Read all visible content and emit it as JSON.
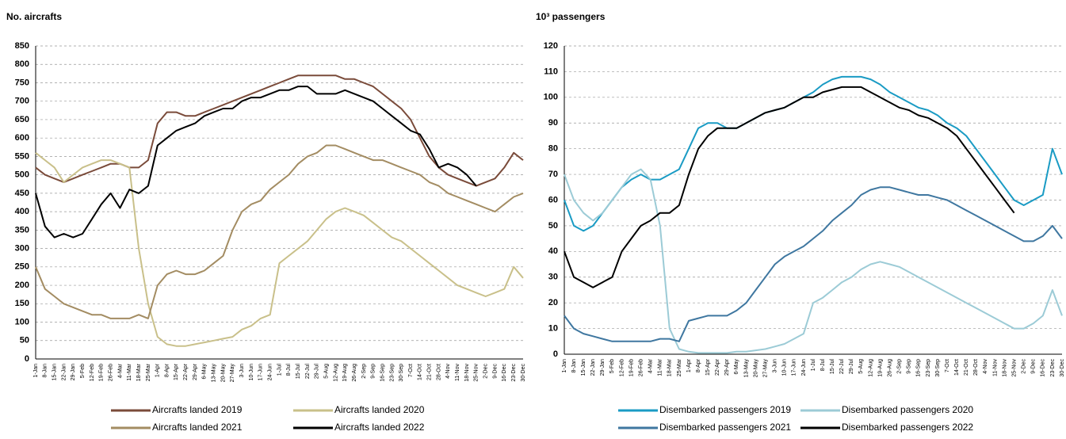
{
  "chart_data": [
    {
      "type": "line",
      "ylabel": "No. aircrafts",
      "categories": [
        "1-Jan",
        "8-Jan",
        "15-Jan",
        "22-Jan",
        "29-Jan",
        "5-Feb",
        "12-Feb",
        "19-Feb",
        "26-Feb",
        "4-Mar",
        "11-Mar",
        "18-Mar",
        "25-Mar",
        "1-Apr",
        "8-Apr",
        "15-Apr",
        "22-Apr",
        "29-Apr",
        "6-May",
        "13-May",
        "20-May",
        "27-May",
        "3-Jun",
        "10-Jun",
        "17-Jun",
        "24-Jun",
        "1-Jul",
        "8-Jul",
        "15-Jul",
        "22-Jul",
        "29-Jul",
        "5-Aug",
        "12-Aug",
        "19-Aug",
        "26-Aug",
        "2-Sep",
        "9-Sep",
        "16-Sep",
        "23-Sep",
        "30-Sep",
        "7-Oct",
        "14-Oct",
        "21-Oct",
        "28-Oct",
        "4-Nov",
        "11-Nov",
        "18-Nov",
        "25-Nov",
        "2-Dec",
        "9-Dec",
        "16-Dec",
        "23-Dec",
        "30-Dec"
      ],
      "ylim": [
        0,
        850
      ],
      "yticks": [
        0,
        50,
        100,
        150,
        200,
        250,
        300,
        350,
        400,
        450,
        500,
        550,
        600,
        650,
        700,
        750,
        800,
        850
      ],
      "grid": true,
      "series": [
        {
          "name": "Aircrafts landed 2019",
          "color": "#7a4b3a",
          "values": [
            520,
            500,
            490,
            480,
            490,
            500,
            510,
            520,
            530,
            530,
            520,
            520,
            540,
            640,
            670,
            670,
            660,
            660,
            670,
            680,
            690,
            700,
            710,
            720,
            730,
            740,
            750,
            760,
            770,
            770,
            770,
            770,
            770,
            760,
            760,
            750,
            740,
            720,
            700,
            680,
            650,
            600,
            550,
            520,
            500,
            490,
            480,
            470,
            480,
            490,
            520,
            560,
            540
          ]
        },
        {
          "name": "Aircrafts landed 2020",
          "color": "#c9c08a",
          "values": [
            560,
            540,
            520,
            480,
            500,
            520,
            530,
            540,
            540,
            530,
            520,
            300,
            150,
            60,
            40,
            35,
            35,
            40,
            45,
            50,
            55,
            60,
            80,
            90,
            110,
            120,
            260,
            280,
            300,
            320,
            350,
            380,
            400,
            410,
            400,
            390,
            370,
            350,
            330,
            320,
            300,
            280,
            260,
            240,
            220,
            200,
            190,
            180,
            170,
            180,
            190,
            250,
            220
          ]
        },
        {
          "name": "Aircrafts landed 2021",
          "color": "#a38c62",
          "values": [
            250,
            190,
            170,
            150,
            140,
            130,
            120,
            120,
            110,
            110,
            110,
            120,
            110,
            200,
            230,
            240,
            230,
            230,
            240,
            260,
            280,
            350,
            400,
            420,
            430,
            460,
            480,
            500,
            530,
            550,
            560,
            580,
            580,
            570,
            560,
            550,
            540,
            540,
            530,
            520,
            510,
            500,
            480,
            470,
            450,
            440,
            430,
            420,
            410,
            400,
            420,
            440,
            450
          ]
        },
        {
          "name": "Aircrafts landed 2022",
          "color": "#000000",
          "values": [
            450,
            360,
            330,
            340,
            330,
            340,
            380,
            420,
            450,
            410,
            460,
            450,
            470,
            580,
            600,
            620,
            630,
            640,
            660,
            670,
            680,
            680,
            700,
            710,
            710,
            720,
            730,
            730,
            740,
            740,
            720,
            720,
            720,
            730,
            720,
            710,
            700,
            680,
            660,
            640,
            620,
            610,
            570,
            520,
            530,
            520,
            500,
            470,
            null,
            null,
            null,
            null,
            null
          ]
        }
      ]
    },
    {
      "type": "line",
      "ylabel": "10³ passengers",
      "categories": [
        "1-Jan",
        "8-Jan",
        "15-Jan",
        "22-Jan",
        "29-Jan",
        "5-Feb",
        "12-Feb",
        "19-Feb",
        "26-Feb",
        "4-Mar",
        "11-Mar",
        "18-Mar",
        "25-Mar",
        "1-Apr",
        "8-Apr",
        "15-Apr",
        "22-Apr",
        "29-Apr",
        "6-May",
        "13-May",
        "20-May",
        "27-May",
        "3-Jun",
        "10-Jun",
        "17-Jun",
        "24-Jun",
        "1-Jul",
        "8-Jul",
        "15-Jul",
        "22-Jul",
        "29-Jul",
        "5-Aug",
        "12-Aug",
        "19-Aug",
        "26-Aug",
        "2-Sep",
        "9-Sep",
        "16-Sep",
        "23-Sep",
        "30-Sep",
        "7-Oct",
        "14-Oct",
        "21-Oct",
        "28-Oct",
        "4-Nov",
        "11-Nov",
        "18-Nov",
        "25-Nov",
        "2-Dec",
        "9-Dec",
        "16-Dec",
        "23-Dec",
        "30-Dec"
      ],
      "ylim": [
        0,
        120
      ],
      "yticks": [
        0,
        10,
        20,
        30,
        40,
        50,
        60,
        70,
        80,
        90,
        100,
        110,
        120
      ],
      "grid": true,
      "series": [
        {
          "name": "Disembarked passengers 2019",
          "color": "#1a9bc4",
          "values": [
            60,
            50,
            48,
            50,
            55,
            60,
            65,
            68,
            70,
            68,
            68,
            70,
            72,
            80,
            88,
            90,
            90,
            88,
            88,
            90,
            92,
            94,
            95,
            96,
            98,
            100,
            102,
            105,
            107,
            108,
            108,
            108,
            107,
            105,
            102,
            100,
            98,
            96,
            95,
            93,
            90,
            88,
            85,
            80,
            75,
            70,
            65,
            60,
            58,
            60,
            62,
            80,
            70
          ]
        },
        {
          "name": "Disembarked passengers 2020",
          "color": "#9ccbd6",
          "values": [
            70,
            60,
            55,
            52,
            55,
            60,
            65,
            70,
            72,
            68,
            50,
            10,
            2,
            1,
            0.5,
            0.5,
            0.5,
            0.5,
            1,
            1,
            1.5,
            2,
            3,
            4,
            6,
            8,
            20,
            22,
            25,
            28,
            30,
            33,
            35,
            36,
            35,
            34,
            32,
            30,
            28,
            26,
            24,
            22,
            20,
            18,
            16,
            14,
            12,
            10,
            10,
            12,
            15,
            25,
            15
          ]
        },
        {
          "name": "Disembarked passengers 2021",
          "color": "#3f77a0",
          "values": [
            15,
            10,
            8,
            7,
            6,
            5,
            5,
            5,
            5,
            5,
            6,
            6,
            5,
            13,
            14,
            15,
            15,
            15,
            17,
            20,
            25,
            30,
            35,
            38,
            40,
            42,
            45,
            48,
            52,
            55,
            58,
            62,
            64,
            65,
            65,
            64,
            63,
            62,
            62,
            61,
            60,
            58,
            56,
            54,
            52,
            50,
            48,
            46,
            44,
            44,
            46,
            50,
            45
          ]
        },
        {
          "name": "Disembarked passengers 2022",
          "color": "#000000",
          "values": [
            40,
            30,
            28,
            26,
            28,
            30,
            40,
            45,
            50,
            52,
            55,
            55,
            58,
            70,
            80,
            85,
            88,
            88,
            88,
            90,
            92,
            94,
            95,
            96,
            98,
            100,
            100,
            102,
            103,
            104,
            104,
            104,
            102,
            100,
            98,
            96,
            95,
            93,
            92,
            90,
            88,
            85,
            80,
            75,
            70,
            65,
            60,
            55,
            null,
            null,
            null,
            null,
            null
          ]
        }
      ]
    }
  ]
}
